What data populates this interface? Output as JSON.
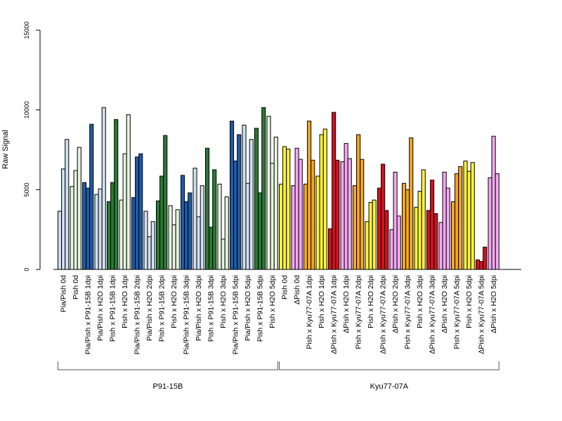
{
  "chart_data": {
    "type": "bar",
    "ylabel": "Raw Signal",
    "ylim": [
      0,
      15000
    ],
    "yticks": [
      0,
      5000,
      10000,
      15000
    ],
    "grid": false,
    "legend": "none",
    "groups": [
      {
        "label": "P91-15B",
        "categories": [
          {
            "label": "Pia/Pish 0d",
            "values": [
              3650,
              6300,
              8150
            ],
            "color": "#cfe0f2"
          },
          {
            "label": "Pish 0d",
            "values": [
              5200,
              6200,
              7650
            ],
            "color": "#e6f5df"
          },
          {
            "label": "Pia/Pish x P91-15B 1dpi",
            "values": [
              5450,
              5100,
              9100
            ],
            "color": "#1f5ba8"
          },
          {
            "label": "Pia/Pish x H2O 1dpi",
            "values": [
              4700,
              5050,
              10150
            ],
            "color": "#cfe0f2"
          },
          {
            "label": "Pish x P91-15B 1dpi",
            "values": [
              4250,
              5450,
              9400
            ],
            "color": "#2b7a35"
          },
          {
            "label": "Pish x H2O 1dpi",
            "values": [
              4350,
              7250,
              9700
            ],
            "color": "#e6f5df"
          },
          {
            "label": "Pia/Pish x P91-15B 2dpi",
            "values": [
              4500,
              7050,
              7250
            ],
            "color": "#1f5ba8"
          },
          {
            "label": "Pia/Pish x H2O 2dpi",
            "values": [
              3650,
              2050,
              3000
            ],
            "color": "#cfe0f2"
          },
          {
            "label": "Pish x P91-15B 2dpi",
            "values": [
              4300,
              5850,
              8400
            ],
            "color": "#2b7a35"
          },
          {
            "label": "Pish x H2O 2dpi",
            "values": [
              4000,
              2800,
              3750
            ],
            "color": "#e6f5df"
          },
          {
            "label": "Pia/Pish x P91-15B 3dpi",
            "values": [
              5900,
              4250,
              4800
            ],
            "color": "#1f5ba8"
          },
          {
            "label": "Pia/Pish x H2O 3dpi",
            "values": [
              6350,
              3300,
              5250
            ],
            "color": "#cfe0f2"
          },
          {
            "label": "Pish x P91-15B 3dpi",
            "values": [
              7600,
              2650,
              6250
            ],
            "color": "#2b7a35"
          },
          {
            "label": "Pish x H2O 3dpi",
            "values": [
              5350,
              1900,
              4550
            ],
            "color": "#e6f5df"
          },
          {
            "label": "Pia/Pish x P91-15B 5dpi",
            "values": [
              9300,
              6800,
              8450
            ],
            "color": "#1f5ba8"
          },
          {
            "label": "Pia/Pish x H2O 5dpi",
            "values": [
              9050,
              5400,
              8150
            ],
            "color": "#cfe0f2"
          },
          {
            "label": "Pish x P91-15B 5dpi",
            "values": [
              8850,
              4800,
              10150
            ],
            "color": "#2b7a35"
          },
          {
            "label": "Pish x H2O 5dpi",
            "values": [
              9600,
              6650,
              8300
            ],
            "color": "#e6f5df"
          }
        ]
      },
      {
        "label": "Kyu77-07A",
        "categories": [
          {
            "label": "Pish 0d",
            "values": [
              5350,
              7700,
              7550
            ],
            "color": "#fff23a"
          },
          {
            "label": "ΔPish 0d",
            "values": [
              5250,
              7600,
              6900
            ],
            "color": "#f5a8f2"
          },
          {
            "label": "Pish x Kyu77-07A 1dpi",
            "values": [
              5350,
              9300,
              6850
            ],
            "color": "#f5a623"
          },
          {
            "label": "Pish x H2O 1dpi",
            "values": [
              5850,
              8450,
              8800
            ],
            "color": "#fff23a"
          },
          {
            "label": "ΔPish x Kyu77-07A 1dpi",
            "values": [
              2550,
              9850,
              6850
            ],
            "color": "#d4111e"
          },
          {
            "label": "ΔPish x H2O 1dpi",
            "values": [
              6750,
              7900,
              6950
            ],
            "color": "#f5a8f2"
          },
          {
            "label": "Pish x Kyu77-07A 2dpi",
            "values": [
              5250,
              8450,
              6900
            ],
            "color": "#f5a623"
          },
          {
            "label": "Pish x H2O 2dpi",
            "values": [
              3000,
              4200,
              4350
            ],
            "color": "#fff23a"
          },
          {
            "label": "ΔPish x Kyu77-07A 2dpi",
            "values": [
              5100,
              6600,
              3700
            ],
            "color": "#d4111e"
          },
          {
            "label": "ΔPish x H2O 2dpi",
            "values": [
              2500,
              6100,
              3350
            ],
            "color": "#f5a8f2"
          },
          {
            "label": "Pish x Kyu77-07A 3dpi",
            "values": [
              5400,
              5000,
              8250
            ],
            "color": "#f5a623"
          },
          {
            "label": "Pish x H2O 3dpi",
            "values": [
              3900,
              4900,
              6250
            ],
            "color": "#fff23a"
          },
          {
            "label": "ΔPish x Kyu77-07A 3dpi",
            "values": [
              3700,
              5600,
              3500
            ],
            "color": "#d4111e"
          },
          {
            "label": "ΔPish x H2O 3dpi",
            "values": [
              2950,
              6100,
              5100
            ],
            "color": "#f5a8f2"
          },
          {
            "label": "Pish x Kyu77-07A 5dpi",
            "values": [
              4250,
              6000,
              6450
            ],
            "color": "#f5a623"
          },
          {
            "label": "Pish x H2O 5dpi",
            "values": [
              6800,
              6150,
              6700
            ],
            "color": "#fff23a"
          },
          {
            "label": "ΔPish x Kyu77-07A 5dpi",
            "values": [
              600,
              500,
              1400
            ],
            "color": "#d4111e"
          },
          {
            "label": "ΔPish x H2O 5dpi",
            "values": [
              5750,
              8350,
              6000
            ],
            "color": "#f5a8f2"
          }
        ]
      }
    ]
  }
}
